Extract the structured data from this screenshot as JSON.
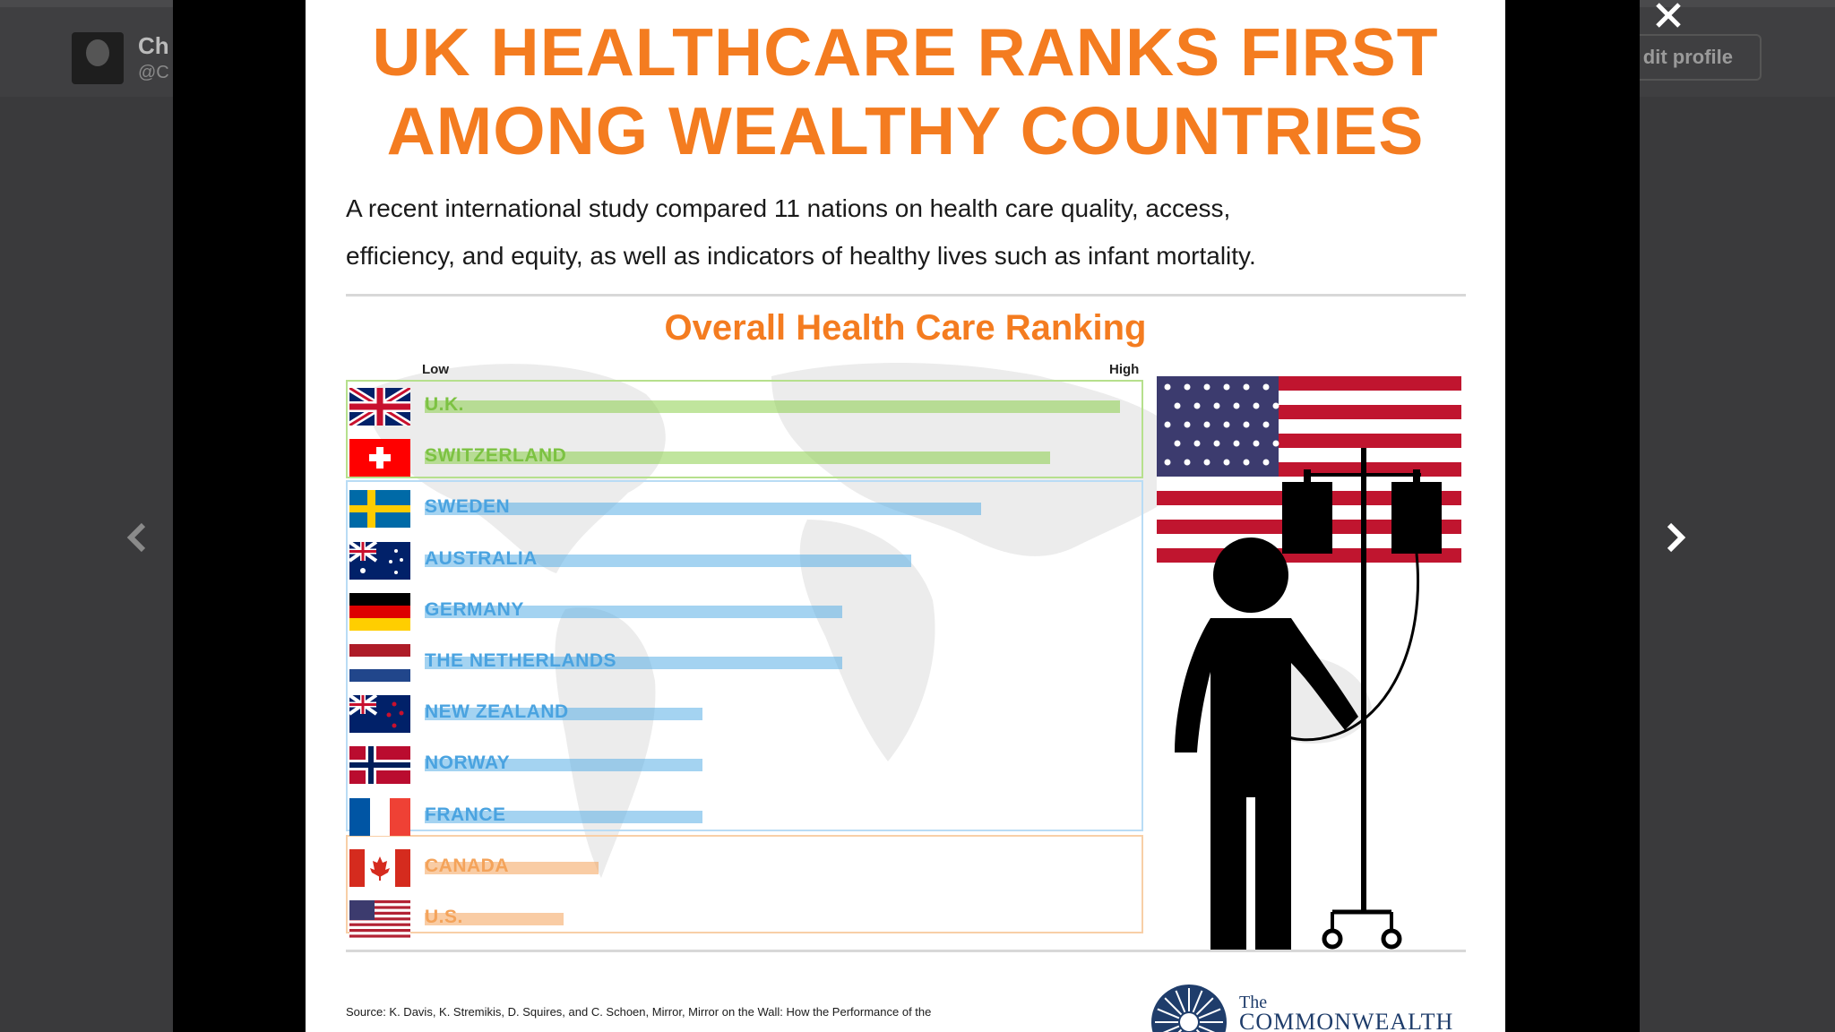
{
  "background_profile": {
    "name": "Ch",
    "handle": "@C",
    "edit_button": "dit profile"
  },
  "infographic": {
    "title_line1": "UK HEALTHCARE RANKS FIRST",
    "title_line2": "AMONG WEALTHY COUNTRIES",
    "subtitle_line1": "A recent international study compared 11 nations on health care quality, access,",
    "subtitle_line2": "efficiency, and equity, as well as indicators of healthy lives such as infant mortality.",
    "chart_title": "Overall Health Care Ranking",
    "axis_low": "Low",
    "axis_high": "High",
    "source_text": "Source: K. Davis, K. Stremikis, D. Squires, and C. Schoen,  Mirror, Mirror on the Wall: How the Performance of the",
    "logo_the": "The",
    "logo_name": "COMMONWEALTH"
  },
  "colors": {
    "title_orange": "#f47c20",
    "top_green": "#8ccf4d",
    "middle_blue": "#5aaee6",
    "bottom_orange": "#f4a35a"
  },
  "chart_data": {
    "type": "bar",
    "orientation": "horizontal",
    "title": "Overall Health Care Ranking",
    "axis_labels": {
      "low": "Low",
      "high": "High"
    },
    "categories": [
      "U.K.",
      "SWITZERLAND",
      "SWEDEN",
      "AUSTRALIA",
      "GERMANY",
      "THE NETHERLANDS",
      "NEW ZEALAND",
      "NORWAY",
      "FRANCE",
      "CANADA",
      "U.S."
    ],
    "values": [
      1.0,
      0.9,
      0.8,
      0.7,
      0.6,
      0.6,
      0.4,
      0.4,
      0.4,
      0.25,
      0.2
    ],
    "groups": [
      "top",
      "top",
      "middle",
      "middle",
      "middle",
      "middle",
      "middle",
      "middle",
      "middle",
      "bottom",
      "bottom"
    ],
    "flags": [
      "uk",
      "switzerland",
      "sweden",
      "australia",
      "germany",
      "netherlands",
      "new-zealand",
      "norway",
      "france",
      "canada",
      "us"
    ]
  }
}
